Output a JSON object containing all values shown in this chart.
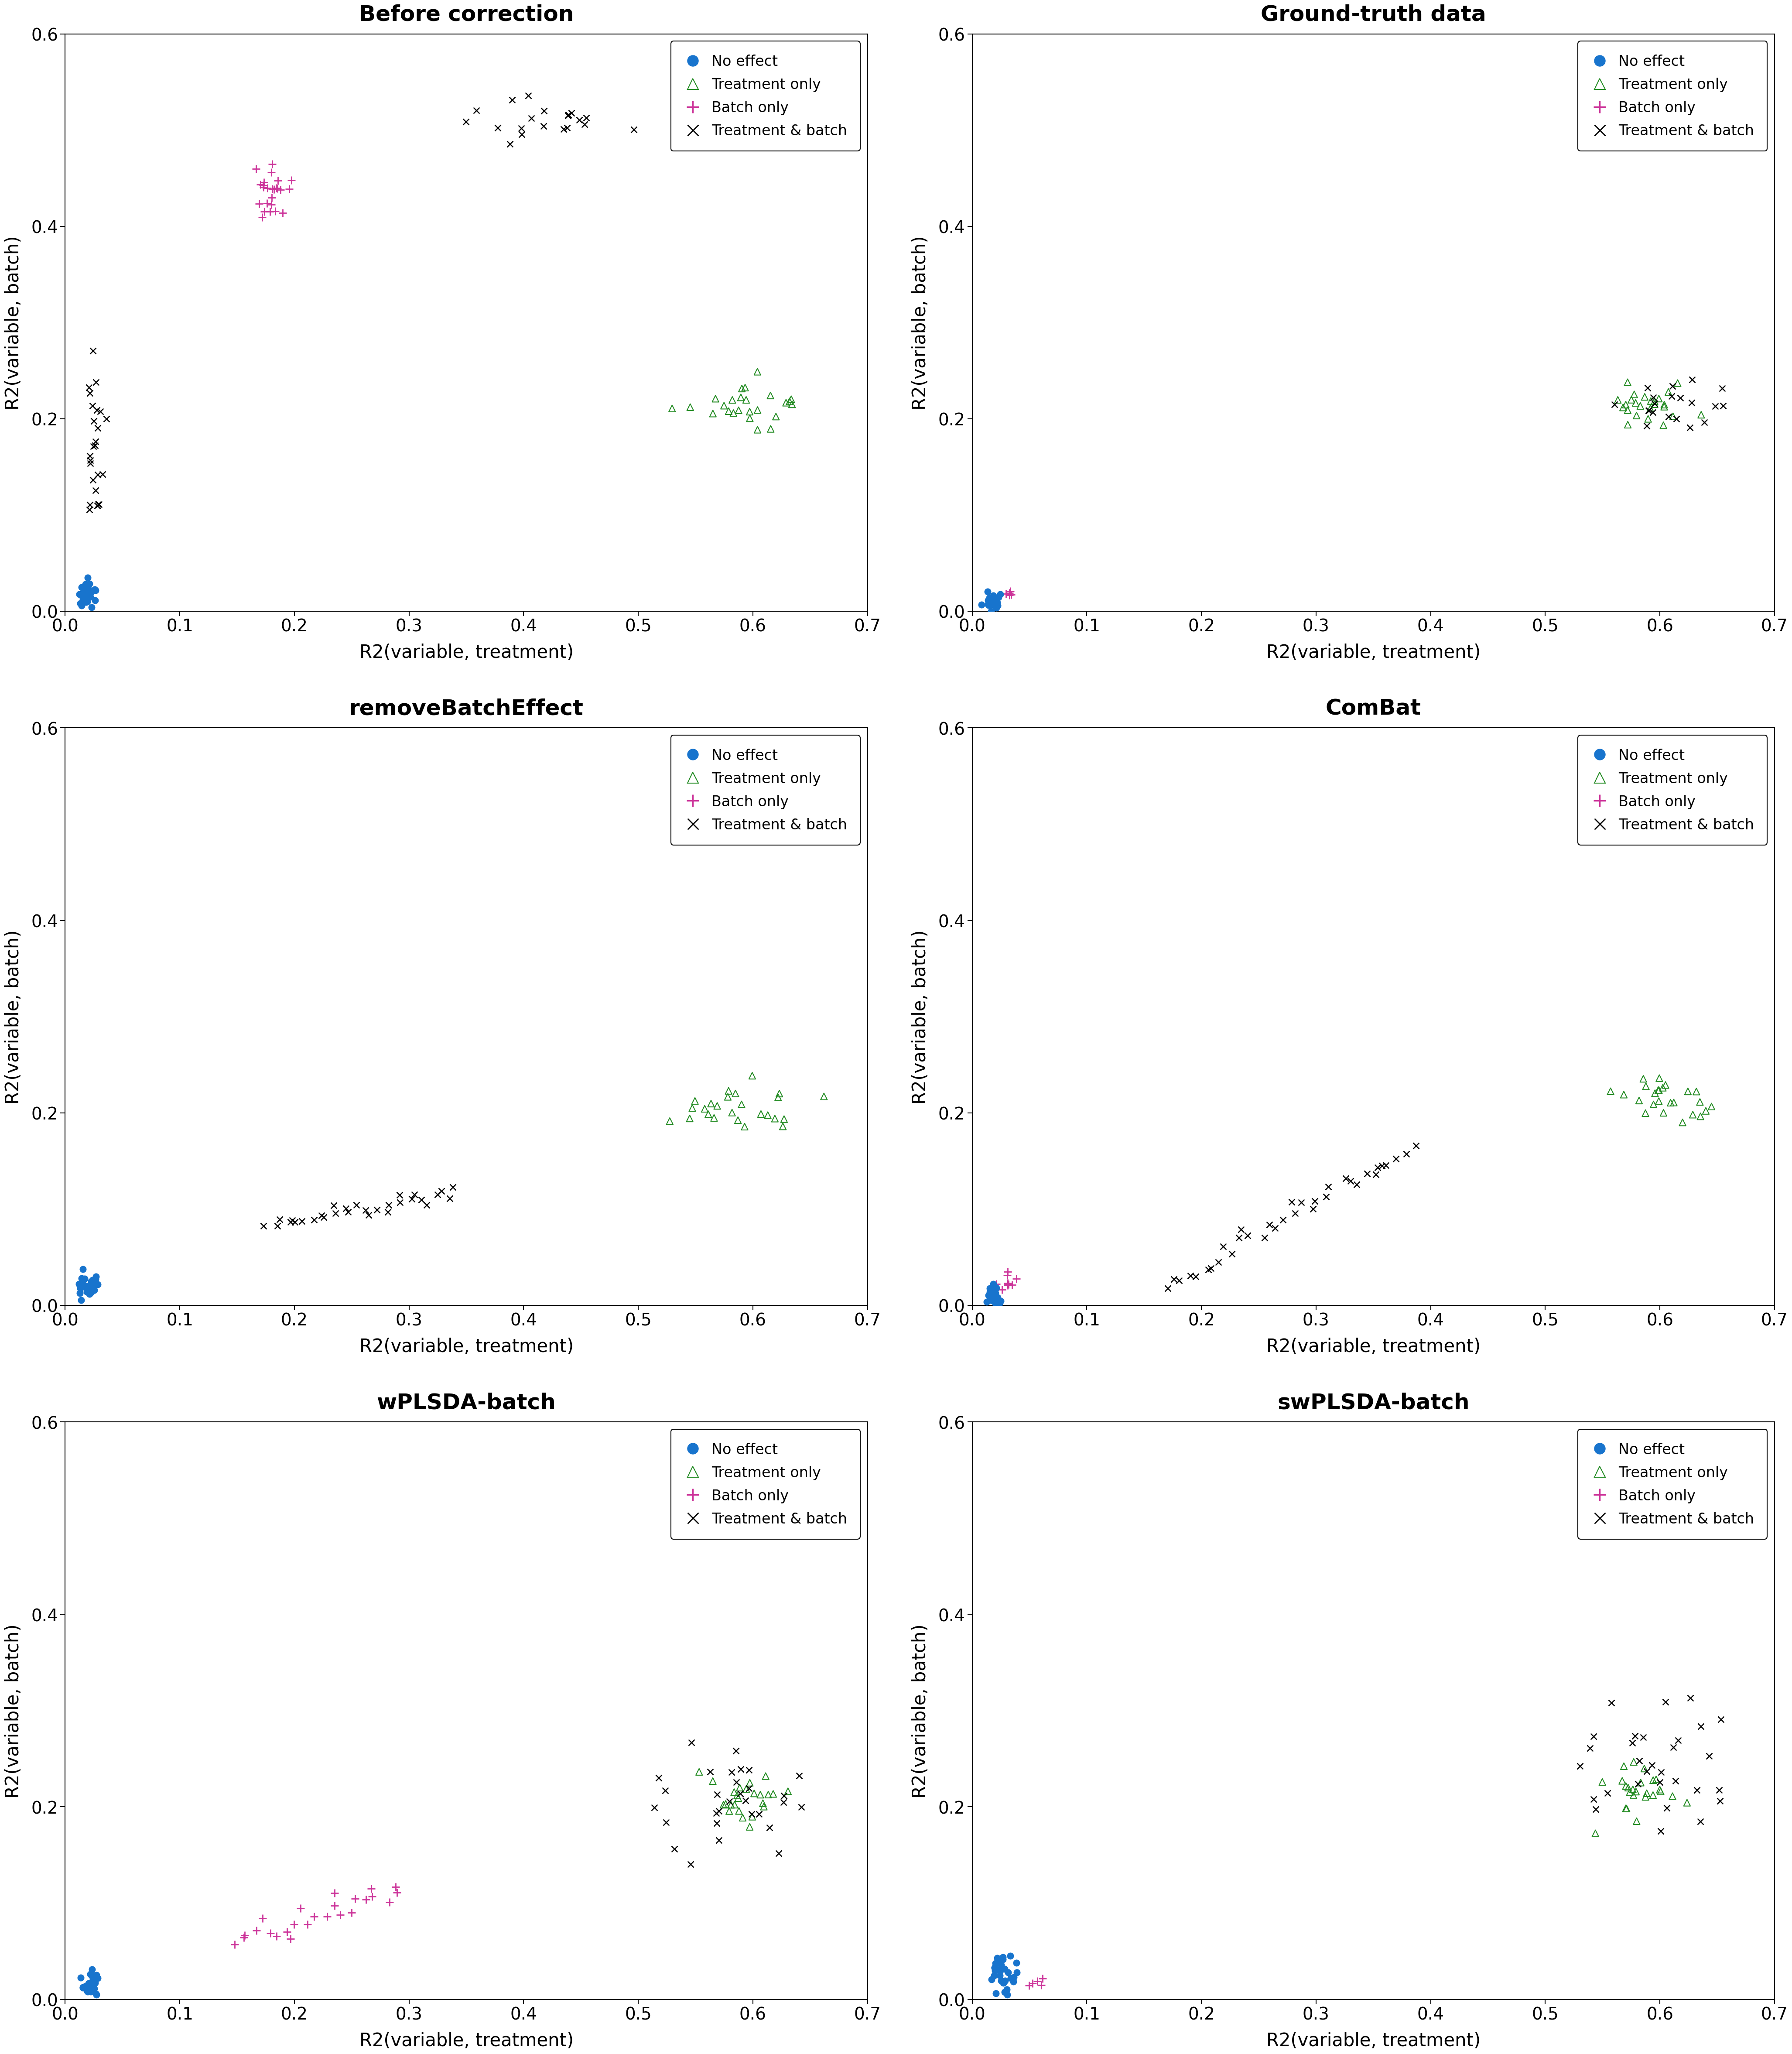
{
  "titles": [
    "Before correction",
    "Ground-truth data",
    "removeBatchEffect",
    "ComBat",
    "wPLSDA-batch",
    "swPLSDA-batch"
  ],
  "colors": {
    "no_effect": "#1874CD",
    "treatment_only": "#228B22",
    "batch_only": "#CC3399",
    "treatment_batch": "#000000"
  },
  "xlim": [
    0.0,
    0.7
  ],
  "ylim": [
    0.0,
    0.6
  ],
  "xticks": [
    0.0,
    0.1,
    0.2,
    0.3,
    0.4,
    0.5,
    0.6,
    0.7
  ],
  "yticks": [
    0.0,
    0.2,
    0.4,
    0.6
  ],
  "xlabel": "R2(variable, treatment)",
  "ylabel": "R2(variable, batch)",
  "background": "#ffffff"
}
